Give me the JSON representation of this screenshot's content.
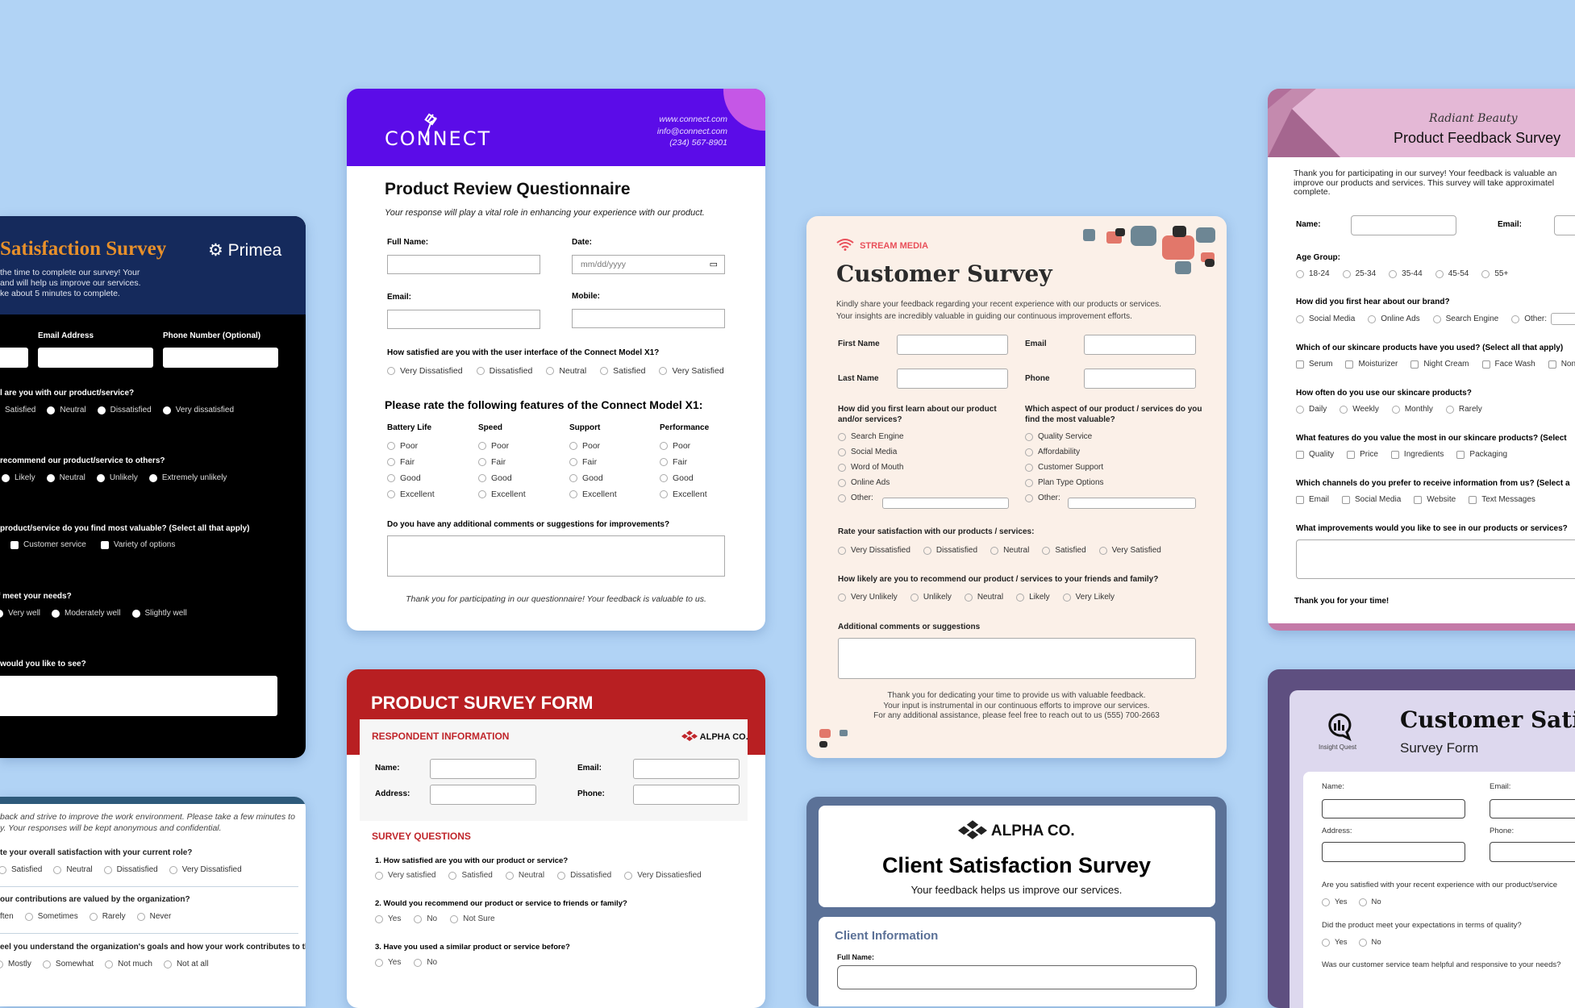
{
  "colors": {
    "background": "#b1d3f5",
    "primea_header": "#152a5c",
    "primea_title": "#e8902a",
    "connect": "#5b0ce8",
    "alpha_red": "#b81f22",
    "stream_coral": "#e2776a",
    "client_border": "#5b7197",
    "radiant_pink": "#e4b8d6",
    "insight_purple": "#5e4f80"
  },
  "primea": {
    "title": "Satisfaction Survey",
    "logo": "Primea",
    "logo_icon": "gear-icon",
    "desc": [
      "the time to complete our survey! Your",
      "and will help us improve our services.",
      "ke about 5 minutes to complete."
    ],
    "email_label": "Email Address",
    "phone_label": "Phone Number (Optional)",
    "q1": "l are you with our product/service?",
    "q1_opts": [
      "Satisfied",
      "Neutral",
      "Dissatisfied",
      "Very dissatisfied"
    ],
    "q2": "recommend our product/service to others?",
    "q2_opts": [
      "Likely",
      "Neutral",
      "Unlikely",
      "Extremely unlikely"
    ],
    "q3": "product/service do you find most valuable? (Select all that apply)",
    "q3_opts": [
      "Customer service",
      "Variety of options"
    ],
    "q4": "f meet your needs?",
    "q4_opts": [
      "Very well",
      "Moderately well",
      "Slightly well"
    ],
    "q5": "would you like to see?"
  },
  "employee": {
    "desc": [
      "back and strive to improve the work environment. Please take a few minutes to",
      "y. Your responses will be kept anonymous and confidential."
    ],
    "q1": "te your overall satisfaction with your current role?",
    "q1_opts": [
      "Satisfied",
      "Neutral",
      "Dissatisfied",
      "Very Dissatisfied"
    ],
    "q2": "our contributions are valued by the organization?",
    "q2_opts": [
      "ften",
      "Sometimes",
      "Rarely",
      "Never"
    ],
    "q3": "eel you understand the organization's goals and how your work contributes to them?",
    "q3_opts": [
      "Mostly",
      "Somewhat",
      "Not much",
      "Not at all"
    ]
  },
  "connect": {
    "logo": "CONNECT",
    "website": "www.connect.com",
    "email": "info@connect.com",
    "phone": "(234) 567-8901",
    "title": "Product Review Questionnaire",
    "subtitle": "Your response will play a vital role in enhancing your experience with our product.",
    "full_name_label": "Full Name:",
    "date_label": "Date:",
    "date_placeholder": "mm/dd/yyyy",
    "email_label": "Email:",
    "mobile_label": "Mobile:",
    "q1": "How satisfied are you with the user interface of the Connect Model X1?",
    "q1_opts": [
      "Very Dissatisfied",
      "Dissatisfied",
      "Neutral",
      "Satisfied",
      "Very Satisfied"
    ],
    "features_heading": "Please rate the following features of the Connect Model X1:",
    "features": [
      {
        "name": "Battery Life"
      },
      {
        "name": "Speed"
      },
      {
        "name": "Support"
      },
      {
        "name": "Performance"
      }
    ],
    "rating_opts": [
      "Poor",
      "Fair",
      "Good",
      "Excellent"
    ],
    "comments_q": "Do you have any additional comments or suggestions for improvements?",
    "thanks": "Thank you for participating in our questionnaire! Your feedback is valuable to us."
  },
  "product_form": {
    "title": "PRODUCT SURVEY FORM",
    "respondent_heading": "RESPONDENT INFORMATION",
    "logo": "ALPHA CO.",
    "name_label": "Name:",
    "email_label": "Email:",
    "address_label": "Address:",
    "phone_label": "Phone:",
    "questions_heading": "SURVEY QUESTIONS",
    "q1": "1. How satisfied are you with our product or service?",
    "q1_opts": [
      "Very satisfied",
      "Satisfied",
      "Neutral",
      "Dissatisfied",
      "Very Dissatiesfied"
    ],
    "q2": "2. Would you recommend our product or service to friends or family?",
    "q2_opts": [
      "Yes",
      "No",
      "Not Sure"
    ],
    "q3": "3. Have you used a similar product or service before?",
    "q3_opts": [
      "Yes",
      "No"
    ]
  },
  "stream": {
    "logo": "STREAM MEDIA",
    "title": "Customer Survey",
    "desc": [
      "Kindly share your feedback regarding your recent experience with our products or services.",
      "Your insights are incredibly valuable in guiding our continuous improvement efforts."
    ],
    "first_name_label": "First Name",
    "email_label": "Email",
    "last_name_label": "Last Name",
    "phone_label": "Phone",
    "q_learn": [
      "How did you first learn about our product",
      "and/or services?"
    ],
    "learn_opts": [
      "Search Engine",
      "Social Media",
      "Word of Mouth",
      "Online Ads",
      "Other:"
    ],
    "q_aspect": [
      "Which aspect of our product / services do you",
      "find the most valuable?"
    ],
    "aspect_opts": [
      "Quality Service",
      "Affordability",
      "Customer Support",
      "Plan Type Options",
      "Other:"
    ],
    "q_rate": "Rate your satisfaction with our products / services:",
    "rate_opts": [
      "Very Dissatisfied",
      "Dissatisfied",
      "Neutral",
      "Satisfied",
      "Very Satisfied"
    ],
    "q_recommend": "How likely are you to recommend our product / services to your friends and family?",
    "recommend_opts": [
      "Very Unlikely",
      "Unlikely",
      "Neutral",
      "Likely",
      "Very Likely"
    ],
    "comments_label": "Additional comments or suggestions",
    "footer": [
      "Thank you for dedicating your time to provide us with valuable feedback.",
      "Your input is instrumental in our continuous efforts to improve our services.",
      "For any additional assistance, please feel free to reach out to us (555) 700-2663"
    ]
  },
  "client": {
    "logo": "ALPHA CO.",
    "title": "Client Satisfaction Survey",
    "subtitle": "Your feedback helps us improve our services.",
    "section": "Client Information",
    "full_name_label": "Full Name:"
  },
  "radiant": {
    "brand": "Radiant Beauty",
    "title": "Product Feedback Survey",
    "desc": [
      "Thank you for participating in our survey! Your feedback is valuable an",
      "improve our products and services. This survey will take approximatel",
      "complete."
    ],
    "name_label": "Name:",
    "email_label": "Email:",
    "age_q": "Age Group:",
    "age_opts": [
      "18-24",
      "25-34",
      "35-44",
      "45-54",
      "55+"
    ],
    "hear_q": "How did you first hear about our brand?",
    "hear_opts": [
      "Social Media",
      "Online Ads",
      "Search Engine",
      "Other:"
    ],
    "used_q": "Which of our skincare products have you used? (Select all that apply)",
    "used_opts": [
      "Serum",
      "Moisturizer",
      "Night Cream",
      "Face Wash",
      "Non"
    ],
    "often_q": "How often do you use our skincare products?",
    "often_opts": [
      "Daily",
      "Weekly",
      "Monthly",
      "Rarely"
    ],
    "features_q": "What features do you value the most in our skincare products? (Select",
    "features_opts": [
      "Quality",
      "Price",
      "Ingredients",
      "Packaging"
    ],
    "channels_q": "Which channels do you prefer to receive information from us? (Select a",
    "channels_opts": [
      "Email",
      "Social Media",
      "Website",
      "Text Messages"
    ],
    "improve_q": "What improvements would you like to see in our products or services?",
    "thanks": "Thank you for your time!"
  },
  "insight": {
    "logo": "Insight Quest",
    "title": "Customer Satisfa",
    "subtitle": "Survey Form",
    "name_label": "Name:",
    "email_label": "Email:",
    "address_label": "Address:",
    "phone_label": "Phone:",
    "q1": "Are you satisfied with your recent experience with our product/service",
    "q1_opts": [
      "Yes",
      "No"
    ],
    "q2": "Did the product meet your expectations in terms of quality?",
    "q2_opts": [
      "Yes",
      "No"
    ],
    "q3": "Was our customer service team helpful and responsive to your needs?"
  }
}
